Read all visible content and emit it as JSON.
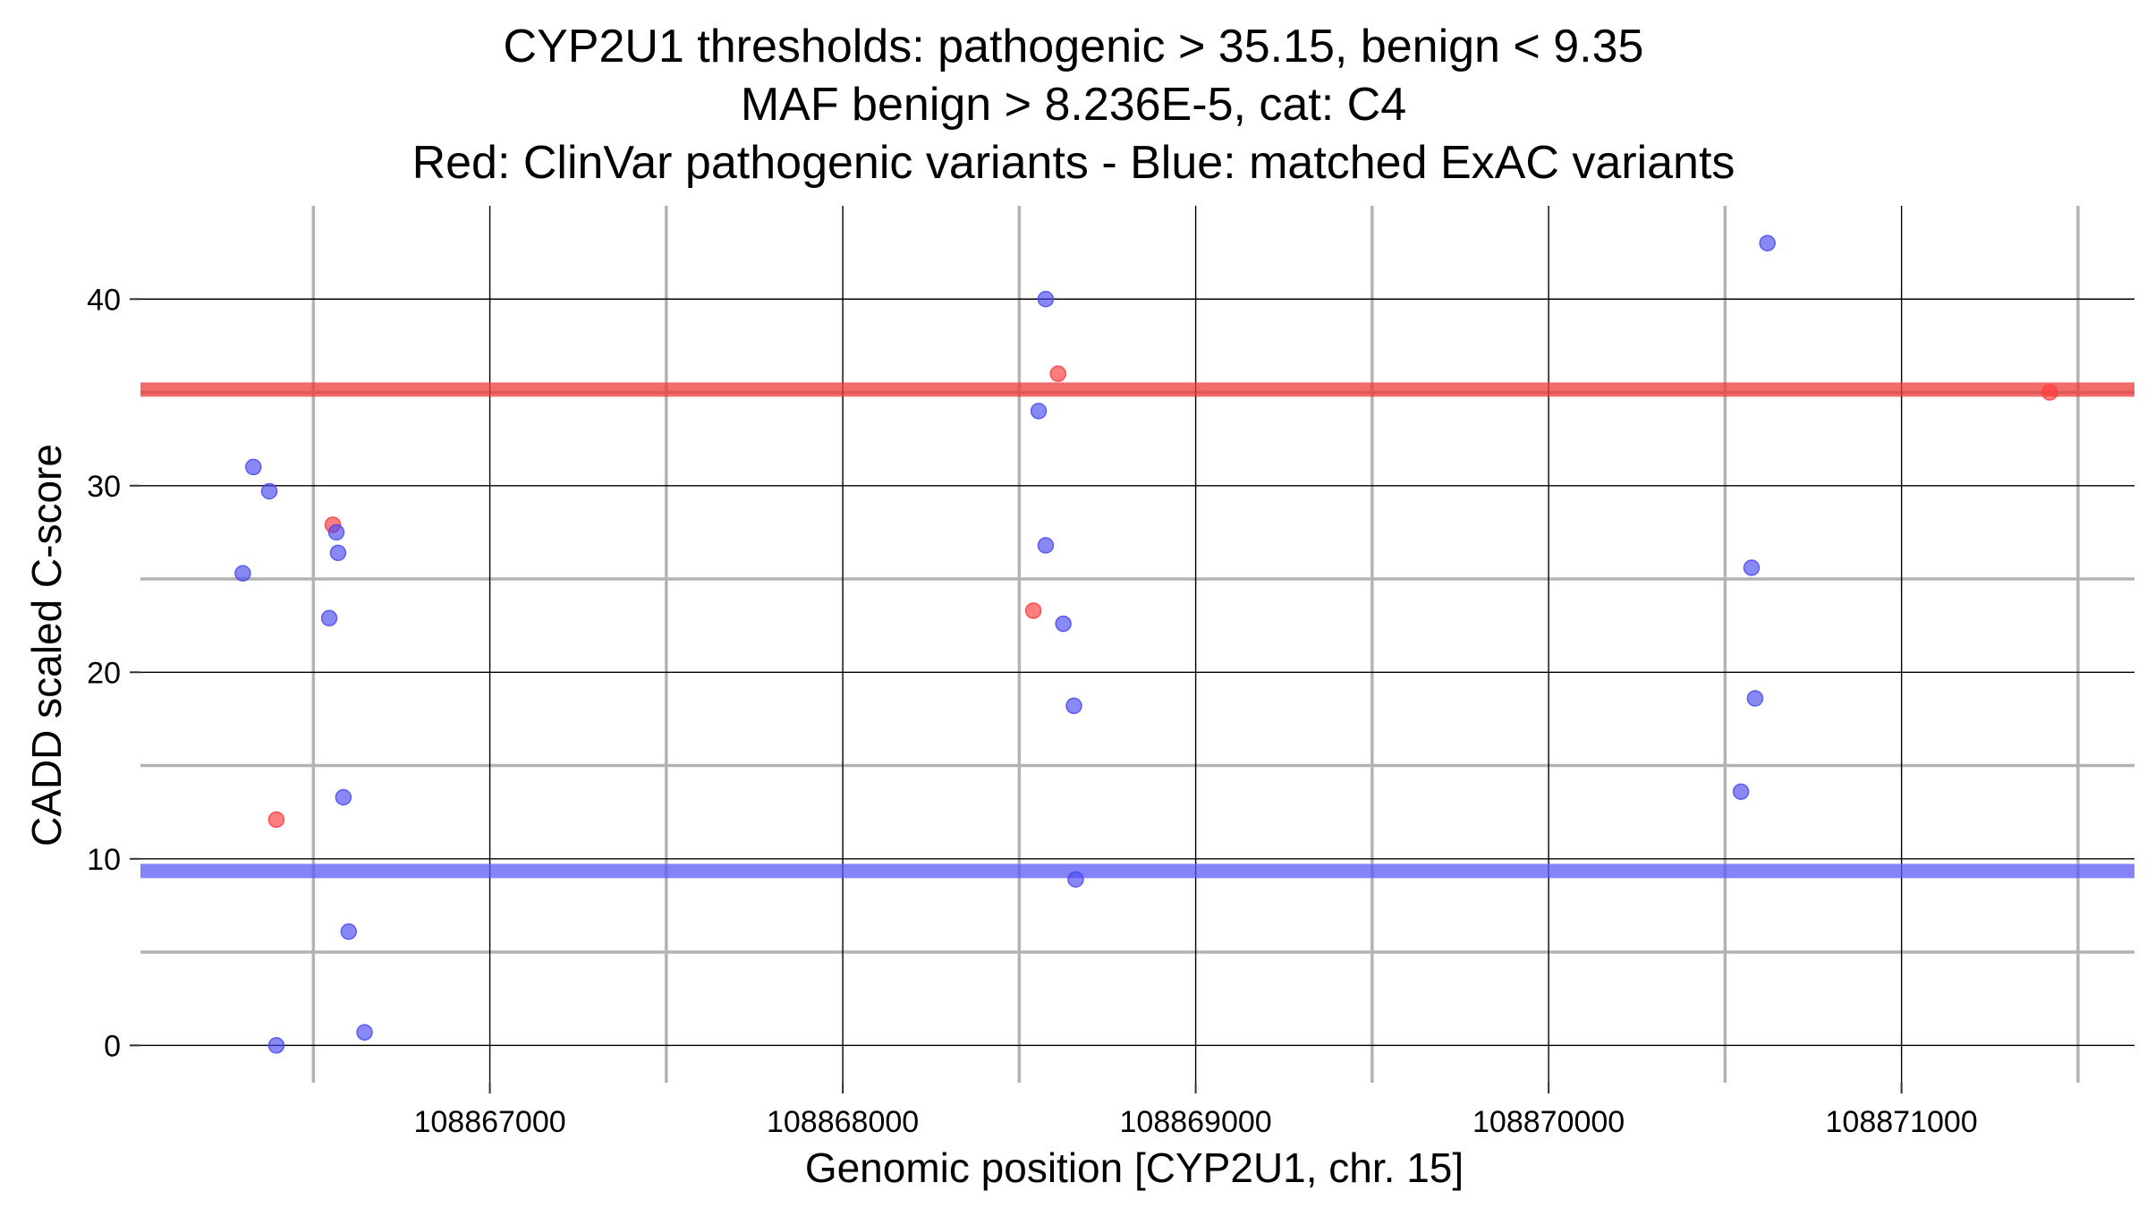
{
  "chart_data": {
    "type": "scatter",
    "title_lines": [
      "CYP2U1 thresholds: pathogenic > 35.15, benign < 9.35",
      "MAF benign > 8.236E-5, cat: C4",
      "Red: ClinVar pathogenic variants - Blue: matched ExAC variants"
    ],
    "xlabel": "Genomic position [CYP2U1, chr. 15]",
    "ylabel": "CADD scaled C-score",
    "xlim": [
      108866010,
      108871660
    ],
    "ylim": [
      -2,
      45
    ],
    "x_major_ticks": [
      108867000,
      108868000,
      108869000,
      108870000,
      108871000
    ],
    "x_tick_labels": [
      "108867000",
      "108868000",
      "108869000",
      "108870000",
      "108871000"
    ],
    "x_minor_grid": [
      108866500,
      108867500,
      108868500,
      108869500,
      108870500,
      108871500
    ],
    "y_major_ticks": [
      0,
      10,
      20,
      30,
      40
    ],
    "y_tick_labels": [
      "0",
      "10",
      "20",
      "30",
      "40"
    ],
    "y_minor_grid": [
      5,
      15,
      25,
      35
    ],
    "grid": true,
    "thresholds": [
      {
        "name": "pathogenic",
        "y": 35.15,
        "color": "#ee3b3b"
      },
      {
        "name": "benign",
        "y": 9.35,
        "color": "#5b5bf5"
      }
    ],
    "series": [
      {
        "color": "#ff3b3b",
        "points": [
          {
            "x": 108866395,
            "y": 12.1
          },
          {
            "x": 108866555,
            "y": 27.9
          },
          {
            "x": 108868540,
            "y": 23.3
          },
          {
            "x": 108868610,
            "y": 36.0
          },
          {
            "x": 108871420,
            "y": 35.0
          }
        ]
      },
      {
        "color": "#4a4af0",
        "points": [
          {
            "x": 108866300,
            "y": 25.3
          },
          {
            "x": 108866330,
            "y": 31.0
          },
          {
            "x": 108866375,
            "y": 29.7
          },
          {
            "x": 108866395,
            "y": 0.0
          },
          {
            "x": 108866545,
            "y": 22.9
          },
          {
            "x": 108866565,
            "y": 27.5
          },
          {
            "x": 108866570,
            "y": 26.4
          },
          {
            "x": 108866585,
            "y": 13.3
          },
          {
            "x": 108866600,
            "y": 6.1
          },
          {
            "x": 108866645,
            "y": 0.7
          },
          {
            "x": 108868555,
            "y": 34.0
          },
          {
            "x": 108868575,
            "y": 40.0
          },
          {
            "x": 108868575,
            "y": 26.8
          },
          {
            "x": 108868625,
            "y": 22.6
          },
          {
            "x": 108868655,
            "y": 18.2
          },
          {
            "x": 108868660,
            "y": 8.9
          },
          {
            "x": 108870545,
            "y": 13.6
          },
          {
            "x": 108870575,
            "y": 25.6
          },
          {
            "x": 108870585,
            "y": 18.6
          },
          {
            "x": 108870620,
            "y": 43.0
          }
        ]
      }
    ]
  }
}
